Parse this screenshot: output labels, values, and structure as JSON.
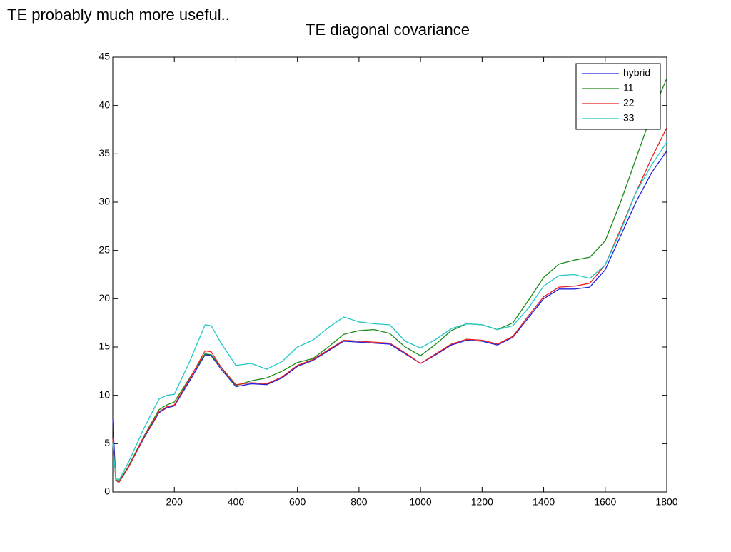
{
  "slide": {
    "heading": "TE probably much more useful.."
  },
  "chart_data": {
    "type": "line",
    "title": "TE diagonal covariance",
    "x": [
      0,
      10,
      20,
      50,
      100,
      150,
      175,
      200,
      250,
      300,
      320,
      350,
      400,
      450,
      500,
      550,
      600,
      650,
      700,
      750,
      800,
      850,
      900,
      950,
      1000,
      1050,
      1100,
      1150,
      1200,
      1250,
      1300,
      1350,
      1400,
      1450,
      1500,
      1550,
      1600,
      1650,
      1700,
      1750,
      1800
    ],
    "series": [
      {
        "name": "hybrid",
        "color": "#2020e0",
        "values": [
          7.5,
          1.2,
          1.0,
          2.5,
          5.5,
          8.2,
          8.7,
          8.9,
          11.5,
          14.2,
          14.1,
          12.8,
          10.9,
          11.2,
          11.1,
          11.8,
          13.0,
          13.6,
          14.6,
          15.6,
          15.5,
          15.4,
          15.3,
          14.3,
          13.3,
          14.2,
          15.2,
          15.7,
          15.6,
          15.2,
          16.0,
          18.0,
          20.0,
          21.0,
          21.0,
          21.2,
          23.0,
          26.5,
          30.0,
          33.0,
          35.3
        ]
      },
      {
        "name": "11",
        "color": "#1a8a1a",
        "values": [
          5.5,
          1.3,
          1.1,
          2.6,
          5.7,
          8.5,
          9.0,
          9.3,
          11.8,
          14.3,
          14.2,
          13.0,
          11.0,
          11.5,
          11.8,
          12.5,
          13.4,
          13.8,
          15.0,
          16.3,
          16.7,
          16.8,
          16.4,
          15.0,
          14.1,
          15.3,
          16.7,
          17.4,
          17.3,
          16.8,
          17.5,
          19.8,
          22.2,
          23.6,
          24.0,
          24.3,
          26.0,
          30.0,
          34.5,
          39.0,
          42.8
        ]
      },
      {
        "name": "22",
        "color": "#e82020",
        "values": [
          5.5,
          1.2,
          1.0,
          2.5,
          5.6,
          8.3,
          8.8,
          9.0,
          11.7,
          14.6,
          14.5,
          13.0,
          11.1,
          11.3,
          11.2,
          11.9,
          13.1,
          13.7,
          14.7,
          15.7,
          15.6,
          15.5,
          15.4,
          14.4,
          13.3,
          14.3,
          15.3,
          15.8,
          15.7,
          15.3,
          16.1,
          18.2,
          20.2,
          21.2,
          21.3,
          21.6,
          23.5,
          27.2,
          31.0,
          34.5,
          37.7
        ]
      },
      {
        "name": "33",
        "color": "#20c8c8",
        "values": [
          5.0,
          1.5,
          1.2,
          3.0,
          6.5,
          9.6,
          10.0,
          10.1,
          13.5,
          17.3,
          17.2,
          15.5,
          13.1,
          13.3,
          12.7,
          13.5,
          15.0,
          15.7,
          17.0,
          18.1,
          17.6,
          17.4,
          17.3,
          15.6,
          14.9,
          15.8,
          16.9,
          17.4,
          17.3,
          16.8,
          17.2,
          19.0,
          21.3,
          22.4,
          22.5,
          22.1,
          23.5,
          27.0,
          31.0,
          33.8,
          36.2
        ]
      }
    ],
    "xlim": [
      0,
      1800
    ],
    "xticks": [
      200,
      400,
      600,
      800,
      1000,
      1200,
      1400,
      1600,
      1800
    ],
    "ylim": [
      0,
      45
    ],
    "yticks": [
      0,
      5,
      10,
      15,
      20,
      25,
      30,
      35,
      40,
      45
    ],
    "grid": false,
    "legend": "northeast"
  }
}
